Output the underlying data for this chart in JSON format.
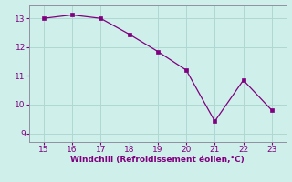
{
  "x": [
    15,
    16,
    17,
    18,
    19,
    20,
    21,
    22,
    23
  ],
  "y": [
    13.0,
    13.12,
    13.0,
    12.45,
    11.85,
    11.2,
    9.42,
    10.85,
    9.8
  ],
  "line_color": "#800080",
  "marker_color": "#800080",
  "bg_color": "#cff0ea",
  "grid_color": "#b0d8d2",
  "xlabel": "Windchill (Refroidissement éolien,°C)",
  "xlabel_color": "#800080",
  "tick_color": "#800080",
  "xlim": [
    14.5,
    23.5
  ],
  "ylim": [
    8.7,
    13.45
  ],
  "xticks": [
    15,
    16,
    17,
    18,
    19,
    20,
    21,
    22,
    23
  ],
  "yticks": [
    9,
    10,
    11,
    12,
    13
  ],
  "spine_color": "#9090a0"
}
